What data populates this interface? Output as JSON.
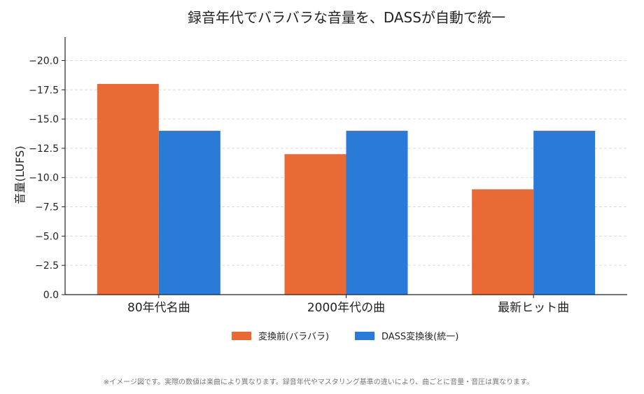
{
  "chart_data": {
    "type": "bar",
    "title": "録音年代でバラバラな音量を、DASSが自動で統一",
    "ylabel": "音量(LUFS)",
    "xlabel": "",
    "categories": [
      "80年代名曲",
      "2000年代の曲",
      "最新ヒット曲"
    ],
    "series": [
      {
        "name": "変換前(バラバラ)",
        "color": "#E96A35",
        "values": [
          -18,
          -12,
          -9
        ]
      },
      {
        "name": "DASS変換後(統一)",
        "color": "#2A7AD8",
        "values": [
          -14,
          -14,
          -14
        ]
      }
    ],
    "ylim": [
      0,
      -22
    ],
    "yticks": [
      0,
      -2.5,
      -5,
      -7.5,
      -10,
      -12.5,
      -15,
      -17.5,
      -20
    ],
    "ytick_labels": [
      "0.0",
      "−2.5",
      "−5.0",
      "−7.5",
      "−10.0",
      "−12.5",
      "−15.0",
      "−17.5",
      "−20.0"
    ],
    "grid": "horizontal-dashed",
    "legend_position": "bottom-center"
  },
  "footnote": "※イメージ図です。実際の数値は楽曲により異なります。録音年代やマスタリング基準の違いにより、曲ごとに音量・音圧は異なります。"
}
